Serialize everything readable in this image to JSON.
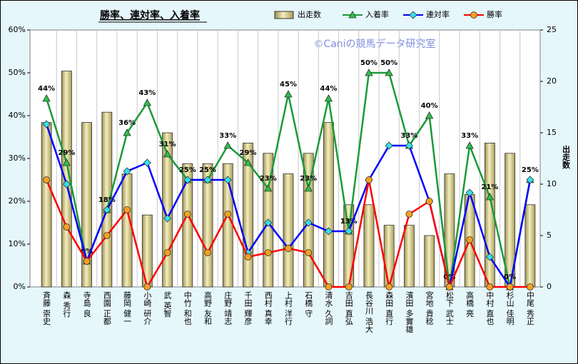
{
  "chart_data": {
    "type": "bar",
    "title": "勝率、連対率、入着率",
    "watermark": "©Caniの競馬データ研究室",
    "y2_label": "出走数",
    "categories": [
      "斉藤 崇史",
      "森 秀行",
      "寺島 良",
      "西園 正都",
      "藤岡 健一",
      "小崎 研介",
      "武 英智",
      "中竹 和也",
      "高野 友和",
      "庄野 靖志",
      "千田 輝彦",
      "西村 真幸",
      "上村 洋行",
      "石橋 守",
      "清水 久詞",
      "吉田 直弘",
      "長谷川 浩大",
      "森田 直行",
      "濱田 多實雄",
      "宮地 貴稔",
      "松下 武士",
      "高橋 亮",
      "中村 直也",
      "杉山 佳明",
      "中尾 秀正"
    ],
    "series": [
      {
        "name": "出走数",
        "type": "bar",
        "axis": "y2",
        "color": "#d8cf86",
        "values": [
          16,
          21,
          16,
          17,
          11,
          7,
          15,
          12,
          12,
          12,
          14,
          13,
          11,
          13,
          16,
          8,
          8,
          6,
          6,
          5,
          11,
          9,
          14,
          13,
          8
        ]
      },
      {
        "name": "入着率",
        "type": "line",
        "color": "#1a9a3a",
        "marker": "triangle",
        "marker_color": "#2cc04a",
        "values": [
          44,
          29,
          6,
          18,
          36,
          43,
          31,
          25,
          25,
          33,
          29,
          23,
          45,
          23,
          44,
          13,
          50,
          50,
          33,
          40,
          0,
          33,
          21,
          0,
          25
        ],
        "value_labels": [
          "44%",
          "29%",
          "6%",
          "18%",
          "36%",
          "43%",
          "31%",
          "25%",
          "25%",
          "33%",
          "29%",
          "23%",
          "45%",
          "23%",
          "44%",
          "13%",
          "50%",
          "50%",
          "33%",
          "40%",
          "0%",
          "33%",
          "21%",
          "0%",
          "25%"
        ]
      },
      {
        "name": "連対率",
        "type": "line",
        "color": "#0000ff",
        "marker": "diamond",
        "marker_color": "#33e0ee",
        "values": [
          38,
          24,
          6,
          18,
          27,
          29,
          16,
          25,
          25,
          25,
          8,
          15,
          9,
          15,
          13,
          13,
          25,
          33,
          33,
          20,
          0,
          22,
          7,
          0,
          25
        ]
      },
      {
        "name": "勝率",
        "type": "line",
        "color": "#ff0000",
        "marker": "circle",
        "marker_color": "#f7a020",
        "values": [
          25,
          14,
          6,
          12,
          18,
          0,
          8,
          17,
          8,
          17,
          7,
          8,
          9,
          8,
          0,
          0,
          25,
          0,
          17,
          20,
          0,
          11,
          0,
          0,
          0
        ]
      }
    ],
    "ylim": [
      0,
      60
    ],
    "yticks": [
      {
        "value": 0,
        "label": "0%"
      },
      {
        "value": 10,
        "label": "10%"
      },
      {
        "value": 20,
        "label": "20%"
      },
      {
        "value": 30,
        "label": "30%"
      },
      {
        "value": 40,
        "label": "40%"
      },
      {
        "value": 50,
        "label": "50%"
      },
      {
        "value": 60,
        "label": "60%"
      }
    ],
    "y2lim": [
      0,
      25
    ],
    "y2ticks": [
      0,
      5,
      10,
      15,
      20,
      25
    ],
    "grid": "vertical"
  }
}
